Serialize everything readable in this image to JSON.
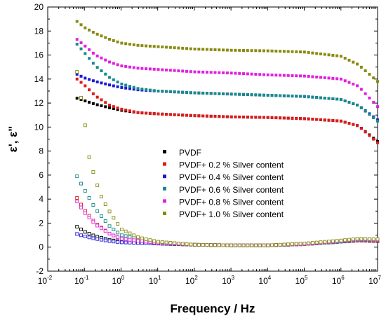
{
  "chart_data": {
    "type": "scatter",
    "title": "",
    "xlabel": "Frequency / Hz",
    "ylabel": "ε', ε\"",
    "x_scale": "log",
    "xlim": [
      0.01,
      10000000
    ],
    "ylim": [
      -2,
      20
    ],
    "x_ticks": [
      {
        "base": "10",
        "exp": "-2"
      },
      {
        "base": "10",
        "exp": "-1"
      },
      {
        "base": "10",
        "exp": "0"
      },
      {
        "base": "10",
        "exp": "1"
      },
      {
        "base": "10",
        "exp": "2"
      },
      {
        "base": "10",
        "exp": "3"
      },
      {
        "base": "10",
        "exp": "4"
      },
      {
        "base": "10",
        "exp": "5"
      },
      {
        "base": "10",
        "exp": "6"
      },
      {
        "base": "10",
        "exp": "7"
      }
    ],
    "y_ticks": [
      "-2",
      "0",
      "2",
      "4",
      "6",
      "8",
      "10",
      "12",
      "14",
      "16",
      "18",
      "20"
    ],
    "grid": false,
    "legend_position": "center-left",
    "marker": "square",
    "series": [
      {
        "name": "PVDF",
        "color": "#000000",
        "eps_prime": [
          [
            0.063,
            12.4
          ],
          [
            0.1,
            12.2
          ],
          [
            0.2,
            11.9
          ],
          [
            0.5,
            11.6
          ],
          [
            1,
            11.4
          ],
          [
            3,
            11.2
          ],
          [
            10,
            11.1
          ],
          [
            100,
            10.95
          ],
          [
            1000,
            10.85
          ],
          [
            10000,
            10.8
          ],
          [
            100000,
            10.7
          ],
          [
            1000000,
            10.5
          ],
          [
            3000000,
            10.1
          ],
          [
            10000000,
            8.8
          ]
        ],
        "eps_double_prime": [
          [
            0.063,
            1.7
          ],
          [
            0.1,
            1.3
          ],
          [
            0.2,
            0.9
          ],
          [
            0.5,
            0.6
          ],
          [
            1,
            0.45
          ],
          [
            10,
            0.3
          ],
          [
            100,
            0.2
          ],
          [
            1000,
            0.15
          ],
          [
            10000,
            0.15
          ],
          [
            100000,
            0.25
          ],
          [
            1000000,
            0.45
          ],
          [
            3000000,
            0.55
          ],
          [
            10000000,
            0.5
          ]
        ]
      },
      {
        "name": "PVDF+ 0.2 % Silver content",
        "color": "#e01818",
        "eps_prime": [
          [
            0.063,
            14.0
          ],
          [
            0.1,
            13.5
          ],
          [
            0.2,
            12.6
          ],
          [
            0.5,
            11.8
          ],
          [
            1,
            11.5
          ],
          [
            3,
            11.2
          ],
          [
            10,
            11.1
          ],
          [
            100,
            10.95
          ],
          [
            1000,
            10.85
          ],
          [
            10000,
            10.8
          ],
          [
            100000,
            10.7
          ],
          [
            1000000,
            10.5
          ],
          [
            3000000,
            10.1
          ],
          [
            10000000,
            8.7
          ]
        ],
        "eps_double_prime": [
          [
            0.063,
            4.1
          ],
          [
            0.1,
            3.1
          ],
          [
            0.2,
            2.0
          ],
          [
            0.5,
            1.1
          ],
          [
            1,
            0.7
          ],
          [
            10,
            0.35
          ],
          [
            100,
            0.2
          ],
          [
            1000,
            0.15
          ],
          [
            10000,
            0.15
          ],
          [
            100000,
            0.25
          ],
          [
            1000000,
            0.45
          ],
          [
            3000000,
            0.55
          ],
          [
            10000000,
            0.5
          ]
        ]
      },
      {
        "name": "PVDF+ 0.4 % Silver content",
        "color": "#1a1ad8",
        "eps_prime": [
          [
            0.063,
            14.4
          ],
          [
            0.1,
            14.1
          ],
          [
            0.2,
            13.8
          ],
          [
            0.5,
            13.5
          ],
          [
            1,
            13.3
          ],
          [
            3,
            13.1
          ],
          [
            10,
            13.0
          ],
          [
            100,
            12.85
          ],
          [
            1000,
            12.75
          ],
          [
            10000,
            12.65
          ],
          [
            100000,
            12.55
          ],
          [
            1000000,
            12.3
          ],
          [
            3000000,
            11.8
          ],
          [
            10000000,
            10.6
          ]
        ],
        "eps_double_prime": [
          [
            0.063,
            1.1
          ],
          [
            0.1,
            0.9
          ],
          [
            0.2,
            0.7
          ],
          [
            0.5,
            0.5
          ],
          [
            1,
            0.4
          ],
          [
            10,
            0.3
          ],
          [
            100,
            0.2
          ],
          [
            1000,
            0.15
          ],
          [
            10000,
            0.15
          ],
          [
            100000,
            0.25
          ],
          [
            1000000,
            0.45
          ],
          [
            3000000,
            0.6
          ],
          [
            10000000,
            0.55
          ]
        ]
      },
      {
        "name": "PVDF+ 0.6 % Silver content",
        "color": "#178a8a",
        "eps_prime": [
          [
            0.063,
            16.9
          ],
          [
            0.1,
            16.2
          ],
          [
            0.2,
            15.1
          ],
          [
            0.5,
            14.1
          ],
          [
            1,
            13.6
          ],
          [
            3,
            13.2
          ],
          [
            10,
            13.0
          ],
          [
            100,
            12.85
          ],
          [
            1000,
            12.75
          ],
          [
            10000,
            12.65
          ],
          [
            100000,
            12.55
          ],
          [
            1000000,
            12.3
          ],
          [
            3000000,
            11.8
          ],
          [
            10000000,
            10.5
          ]
        ],
        "eps_double_prime": [
          [
            0.063,
            5.9
          ],
          [
            0.1,
            4.8
          ],
          [
            0.2,
            3.2
          ],
          [
            0.5,
            1.7
          ],
          [
            1,
            1.0
          ],
          [
            10,
            0.4
          ],
          [
            100,
            0.2
          ],
          [
            1000,
            0.15
          ],
          [
            10000,
            0.15
          ],
          [
            100000,
            0.25
          ],
          [
            1000000,
            0.45
          ],
          [
            3000000,
            0.6
          ],
          [
            10000000,
            0.55
          ]
        ]
      },
      {
        "name": "PVDF+ 0.8 % Silver content",
        "color": "#e020e0",
        "eps_prime": [
          [
            0.063,
            17.3
          ],
          [
            0.1,
            16.8
          ],
          [
            0.2,
            16.0
          ],
          [
            0.5,
            15.4
          ],
          [
            1,
            15.1
          ],
          [
            3,
            14.9
          ],
          [
            10,
            14.8
          ],
          [
            100,
            14.6
          ],
          [
            1000,
            14.5
          ],
          [
            10000,
            14.35
          ],
          [
            100000,
            14.25
          ],
          [
            1000000,
            14.0
          ],
          [
            3000000,
            13.4
          ],
          [
            10000000,
            11.7
          ]
        ],
        "eps_double_prime": [
          [
            0.063,
            3.8
          ],
          [
            0.1,
            2.9
          ],
          [
            0.2,
            1.9
          ],
          [
            0.5,
            1.1
          ],
          [
            1,
            0.7
          ],
          [
            10,
            0.35
          ],
          [
            100,
            0.2
          ],
          [
            1000,
            0.15
          ],
          [
            10000,
            0.15
          ],
          [
            100000,
            0.25
          ],
          [
            1000000,
            0.5
          ],
          [
            3000000,
            0.65
          ],
          [
            10000000,
            0.6
          ]
        ]
      },
      {
        "name": "PVDF+ 1.0 % Silver content",
        "color": "#8a8a10",
        "eps_prime": [
          [
            0.063,
            18.8
          ],
          [
            0.1,
            18.3
          ],
          [
            0.2,
            17.8
          ],
          [
            0.5,
            17.3
          ],
          [
            1,
            17.0
          ],
          [
            3,
            16.8
          ],
          [
            10,
            16.7
          ],
          [
            100,
            16.5
          ],
          [
            1000,
            16.4
          ],
          [
            10000,
            16.35
          ],
          [
            100000,
            16.25
          ],
          [
            1000000,
            15.9
          ],
          [
            3000000,
            15.2
          ],
          [
            10000000,
            13.8
          ]
        ],
        "eps_double_prime": [
          [
            0.063,
            14.6
          ],
          [
            0.1,
            10.7
          ],
          [
            0.13,
            7.7
          ],
          [
            0.2,
            5.6
          ],
          [
            0.3,
            4.1
          ],
          [
            0.5,
            2.9
          ],
          [
            1,
            1.5
          ],
          [
            3,
            0.8
          ],
          [
            10,
            0.45
          ],
          [
            100,
            0.2
          ],
          [
            1000,
            0.15
          ],
          [
            10000,
            0.15
          ],
          [
            100000,
            0.3
          ],
          [
            1000000,
            0.55
          ],
          [
            3000000,
            0.7
          ],
          [
            10000000,
            0.65
          ]
        ]
      }
    ]
  }
}
